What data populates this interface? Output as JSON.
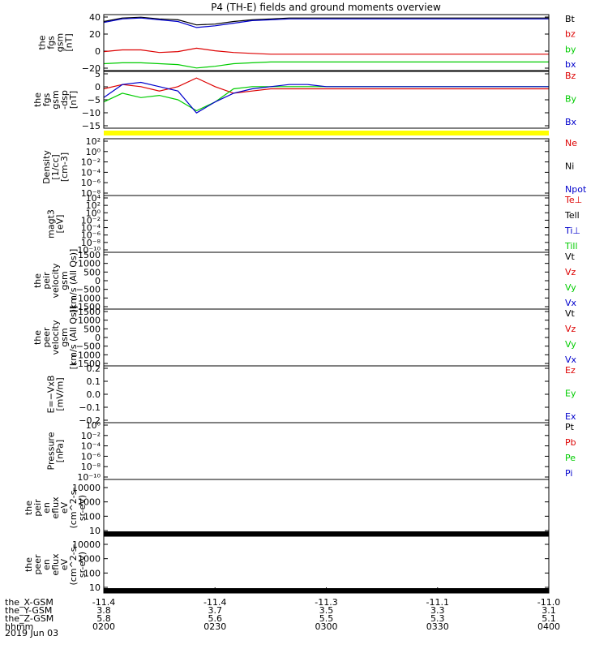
{
  "figure": {
    "title": "P4 (TH-E) fields and ground moments overview",
    "date": "2019 Jun 03"
  },
  "orbit": {
    "rows": [
      {
        "label": "the_X-GSM",
        "values": [
          "-11.4",
          "-11.4",
          "-11.3",
          "-11.1",
          "-11.0"
        ]
      },
      {
        "label": "the_Y-GSM",
        "values": [
          "3.8",
          "3.7",
          "3.5",
          "3.3",
          "3.1"
        ]
      },
      {
        "label": "the_Z-GSM",
        "values": [
          "5.8",
          "5.6",
          "5.5",
          "5.3",
          "5.1"
        ]
      },
      {
        "label": "hhmm",
        "values": [
          "0200",
          "0230",
          "0300",
          "0330",
          "0400"
        ]
      }
    ]
  },
  "chart_data": [
    {
      "type": "line",
      "ylabel": [
        "the",
        "fgs",
        "gsm",
        "[nT]"
      ],
      "ylim": [
        -20,
        45
      ],
      "yticks": [
        "40",
        "20",
        "0",
        "−20"
      ],
      "legend": [
        {
          "name": "Bt",
          "color": "#000000"
        },
        {
          "name": "bz",
          "color": "#dd0000"
        },
        {
          "name": "by",
          "color": "#00cc00"
        },
        {
          "name": "bx",
          "color": "#0000cc"
        }
      ],
      "x": [
        "02:00",
        "02:05",
        "02:10",
        "02:15",
        "02:20",
        "02:25",
        "02:30",
        "02:35",
        "02:40",
        "02:45",
        "02:50",
        "02:55",
        "03:00",
        "03:10",
        "03:20",
        "03:30",
        "03:40",
        "03:50",
        "04:00"
      ],
      "series": [
        {
          "name": "Bt",
          "values": [
            37,
            41,
            42,
            40,
            39,
            33,
            34,
            37,
            39,
            40,
            41,
            41,
            41,
            41,
            41,
            41,
            41,
            41,
            41
          ]
        },
        {
          "name": "bz",
          "values": [
            2,
            4,
            4,
            1,
            2,
            6,
            3,
            1,
            0,
            -1,
            -1,
            -1,
            -1,
            -1,
            -1,
            -1,
            -1,
            -1,
            -1
          ]
        },
        {
          "name": "by",
          "values": [
            -12,
            -11,
            -11,
            -12,
            -13,
            -17,
            -15,
            -12,
            -11,
            -10,
            -10,
            -10,
            -10,
            -10,
            -10,
            -10,
            -10,
            -10,
            -10
          ]
        },
        {
          "name": "bx",
          "values": [
            36,
            40,
            41,
            39,
            37,
            30,
            32,
            35,
            38,
            39,
            40,
            40,
            40,
            40,
            40,
            40,
            40,
            40,
            40
          ]
        }
      ]
    },
    {
      "type": "line",
      "ylabel": [
        "the",
        "fgs",
        "gsm",
        "-dsp",
        "[nT]"
      ],
      "ylim": [
        -18,
        8
      ],
      "yticks": [
        "5",
        "0",
        "−5",
        "−10",
        "−15"
      ],
      "legend": [
        {
          "name": "Bz",
          "color": "#dd0000"
        },
        {
          "name": "By",
          "color": "#00cc00"
        },
        {
          "name": "Bx",
          "color": "#0000cc"
        }
      ],
      "x": [
        "02:00",
        "02:05",
        "02:10",
        "02:15",
        "02:20",
        "02:25",
        "02:30",
        "02:35",
        "02:40",
        "02:45",
        "02:50",
        "02:55",
        "03:00",
        "03:10",
        "03:20",
        "03:30",
        "03:40",
        "03:50",
        "04:00"
      ],
      "series": [
        {
          "name": "Bz",
          "values": [
            0,
            2,
            1,
            -1,
            1,
            5,
            1,
            -2,
            -1,
            0,
            0,
            0,
            0,
            0,
            0,
            0,
            0,
            0,
            0
          ]
        },
        {
          "name": "By",
          "values": [
            -6,
            -2,
            -4,
            -3,
            -5,
            -10,
            -6,
            0,
            1,
            1,
            1,
            1,
            1,
            1,
            1,
            1,
            1,
            1,
            1
          ]
        },
        {
          "name": "Bx",
          "values": [
            -4,
            2,
            3,
            1,
            -1,
            -11,
            -6,
            -2,
            0,
            1,
            2,
            2,
            1,
            1,
            1,
            1,
            1,
            1,
            1
          ]
        }
      ]
    },
    {
      "type": "line",
      "ylabel": [
        "Density",
        "[1/cc]",
        "[cm-3]"
      ],
      "ylim": [
        -9,
        3
      ],
      "yticks": [
        "10²",
        "10⁰",
        "10⁻²",
        "10⁻⁴",
        "10⁻⁶",
        "10⁻⁸"
      ],
      "legend": [
        {
          "name": "Ne",
          "color": "#dd0000"
        },
        {
          "name": "Ni",
          "color": "#000000"
        },
        {
          "name": "Npot",
          "color": "#0000cc"
        }
      ]
    },
    {
      "type": "line",
      "ylabel": [
        "magt3",
        "[eV]"
      ],
      "ylim": [
        -11,
        5
      ],
      "yticks": [
        "10⁴",
        "10²",
        "10⁰",
        "10⁻²",
        "10⁻⁴",
        "10⁻⁶",
        "10⁻⁸",
        "10⁻¹⁰"
      ],
      "legend": [
        {
          "name": "Te⊥",
          "color": "#dd0000"
        },
        {
          "name": "Tell",
          "color": "#000000"
        },
        {
          "name": "Ti⊥",
          "color": "#0000cc"
        },
        {
          "name": "Till",
          "color": "#00cc00"
        }
      ]
    },
    {
      "type": "line",
      "ylabel": [
        "the",
        "peir",
        "velocity",
        "gsm",
        "[km/s (All Qs)]"
      ],
      "ylim": [
        -1500,
        1500
      ],
      "yticks": [
        "1500",
        "1000",
        "500",
        "0",
        "−500",
        "−1000",
        "−1500"
      ],
      "legend": [
        {
          "name": "Vt",
          "color": "#000000"
        },
        {
          "name": "Vz",
          "color": "#dd0000"
        },
        {
          "name": "Vy",
          "color": "#00cc00"
        },
        {
          "name": "Vx",
          "color": "#0000cc"
        }
      ]
    },
    {
      "type": "line",
      "ylabel": [
        "the",
        "peer",
        "velocity",
        "gsm",
        "[km/s (All Qs)]"
      ],
      "ylim": [
        -1500,
        1500
      ],
      "yticks": [
        "1500",
        "1000",
        "500",
        "0",
        "−500",
        "−1000",
        "−1500"
      ],
      "legend": [
        {
          "name": "Vt",
          "color": "#000000"
        },
        {
          "name": "Vz",
          "color": "#dd0000"
        },
        {
          "name": "Vy",
          "color": "#00cc00"
        },
        {
          "name": "Vx",
          "color": "#0000cc"
        }
      ]
    },
    {
      "type": "line",
      "ylabel": [
        "E=−VxB",
        "[mV/m]"
      ],
      "ylim": [
        -0.2,
        0.2
      ],
      "yticks": [
        "0.2",
        "0.1",
        "0.0",
        "−0.1",
        "−0.2"
      ],
      "legend": [
        {
          "name": "Ez",
          "color": "#dd0000"
        },
        {
          "name": "Ey",
          "color": "#00cc00"
        },
        {
          "name": "Ex",
          "color": "#0000cc"
        }
      ]
    },
    {
      "type": "line",
      "ylabel": [
        "Pressure",
        "[nPa]"
      ],
      "ylim": [
        -11,
        1
      ],
      "yticks": [
        "10⁰",
        "10⁻²",
        "10⁻⁴",
        "10⁻⁶",
        "10⁻⁸",
        "10⁻¹⁰"
      ],
      "legend": [
        {
          "name": "Pt",
          "color": "#000000"
        },
        {
          "name": "Pb",
          "color": "#dd0000"
        },
        {
          "name": "Pe",
          "color": "#00cc00"
        },
        {
          "name": "Pi",
          "color": "#0000cc"
        }
      ]
    },
    {
      "type": "heatmap",
      "ylabel": [
        "the",
        "peir",
        "en",
        "eflux",
        "eV",
        "(cm^2-s-",
        "sr-eV)"
      ],
      "ylim": [
        8,
        20000
      ],
      "yticks": [
        "10000",
        "1000",
        "100",
        "10"
      ]
    },
    {
      "type": "heatmap",
      "ylabel": [
        "the",
        "peer",
        "en",
        "eflux",
        "eV",
        "(cm^2-s-",
        "sr-eV)"
      ],
      "ylim": [
        8,
        20000
      ],
      "yticks": [
        "10000",
        "1000",
        "100",
        "10"
      ]
    }
  ]
}
